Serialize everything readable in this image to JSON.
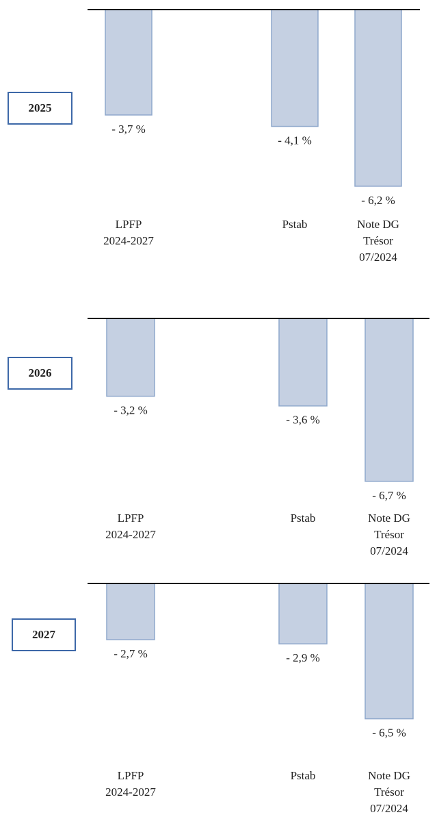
{
  "chart_data": [
    {
      "type": "bar",
      "title": "2025",
      "categories": [
        "LPFP\n2024-2027",
        "Pstab",
        "Note DG\nTrésor\n07/2024"
      ],
      "values": [
        -3.7,
        -4.1,
        -6.2
      ],
      "value_labels": [
        "- 3,7 %",
        "- 4,1 %",
        "- 6,2 %"
      ],
      "color": "#c5d0e2"
    },
    {
      "type": "bar",
      "title": "2026",
      "categories": [
        "LPFP\n2024-2027",
        "Pstab",
        "Note DG\nTrésor\n07/2024"
      ],
      "values": [
        -3.2,
        -3.6,
        -6.7
      ],
      "value_labels": [
        "- 3,2 %",
        "- 3,6 %",
        "- 6,7 %"
      ],
      "color": "#c5d0e2"
    },
    {
      "type": "bar",
      "title": "2027",
      "categories": [
        "LPFP\n2024-2027",
        "Pstab",
        "Note DG\nTrésor\n07/2024"
      ],
      "values": [
        -2.7,
        -2.9,
        -6.5
      ],
      "value_labels": [
        "- 2,7 %",
        "- 2,9 %",
        "- 6,5 %"
      ],
      "color": "#c5d0e2"
    }
  ]
}
